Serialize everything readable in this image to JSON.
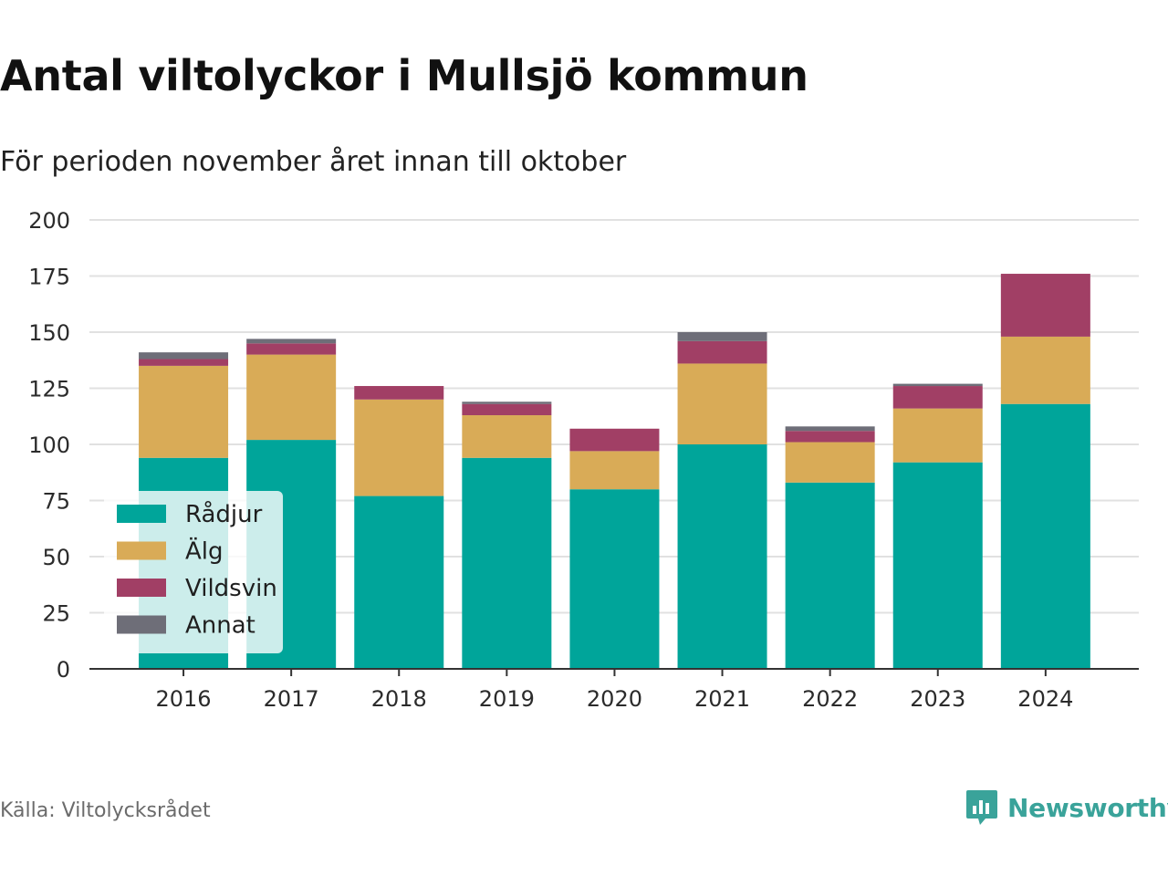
{
  "title": "Antal viltolyckor i Mullsjö kommun",
  "subtitle": "För perioden november året innan till oktober",
  "source": "Källa: Viltolycksrådet",
  "brand": {
    "name": "Newsworthy",
    "icon": "newsworthy-logo-icon",
    "color": "#3aa39a"
  },
  "chart_data": {
    "type": "bar",
    "stacked": true,
    "categories": [
      "2016",
      "2017",
      "2018",
      "2019",
      "2020",
      "2021",
      "2022",
      "2023",
      "2024"
    ],
    "series": [
      {
        "name": "Rådjur",
        "color": "#00a59a",
        "values": [
          94,
          102,
          77,
          94,
          80,
          100,
          83,
          92,
          118
        ]
      },
      {
        "name": "Älg",
        "color": "#d9ab57",
        "values": [
          41,
          38,
          43,
          19,
          17,
          36,
          18,
          24,
          30
        ]
      },
      {
        "name": "Vildsvin",
        "color": "#a13f65",
        "values": [
          3,
          5,
          6,
          5,
          10,
          10,
          5,
          10,
          28
        ]
      },
      {
        "name": "Annat",
        "color": "#6e6e78",
        "values": [
          3,
          2,
          0,
          1,
          0,
          4,
          2,
          1,
          0
        ]
      }
    ],
    "ylim": [
      0,
      200
    ],
    "yticks": [
      0,
      25,
      50,
      75,
      100,
      125,
      150,
      175,
      200
    ],
    "grid": true,
    "legend": "bottom-left"
  }
}
